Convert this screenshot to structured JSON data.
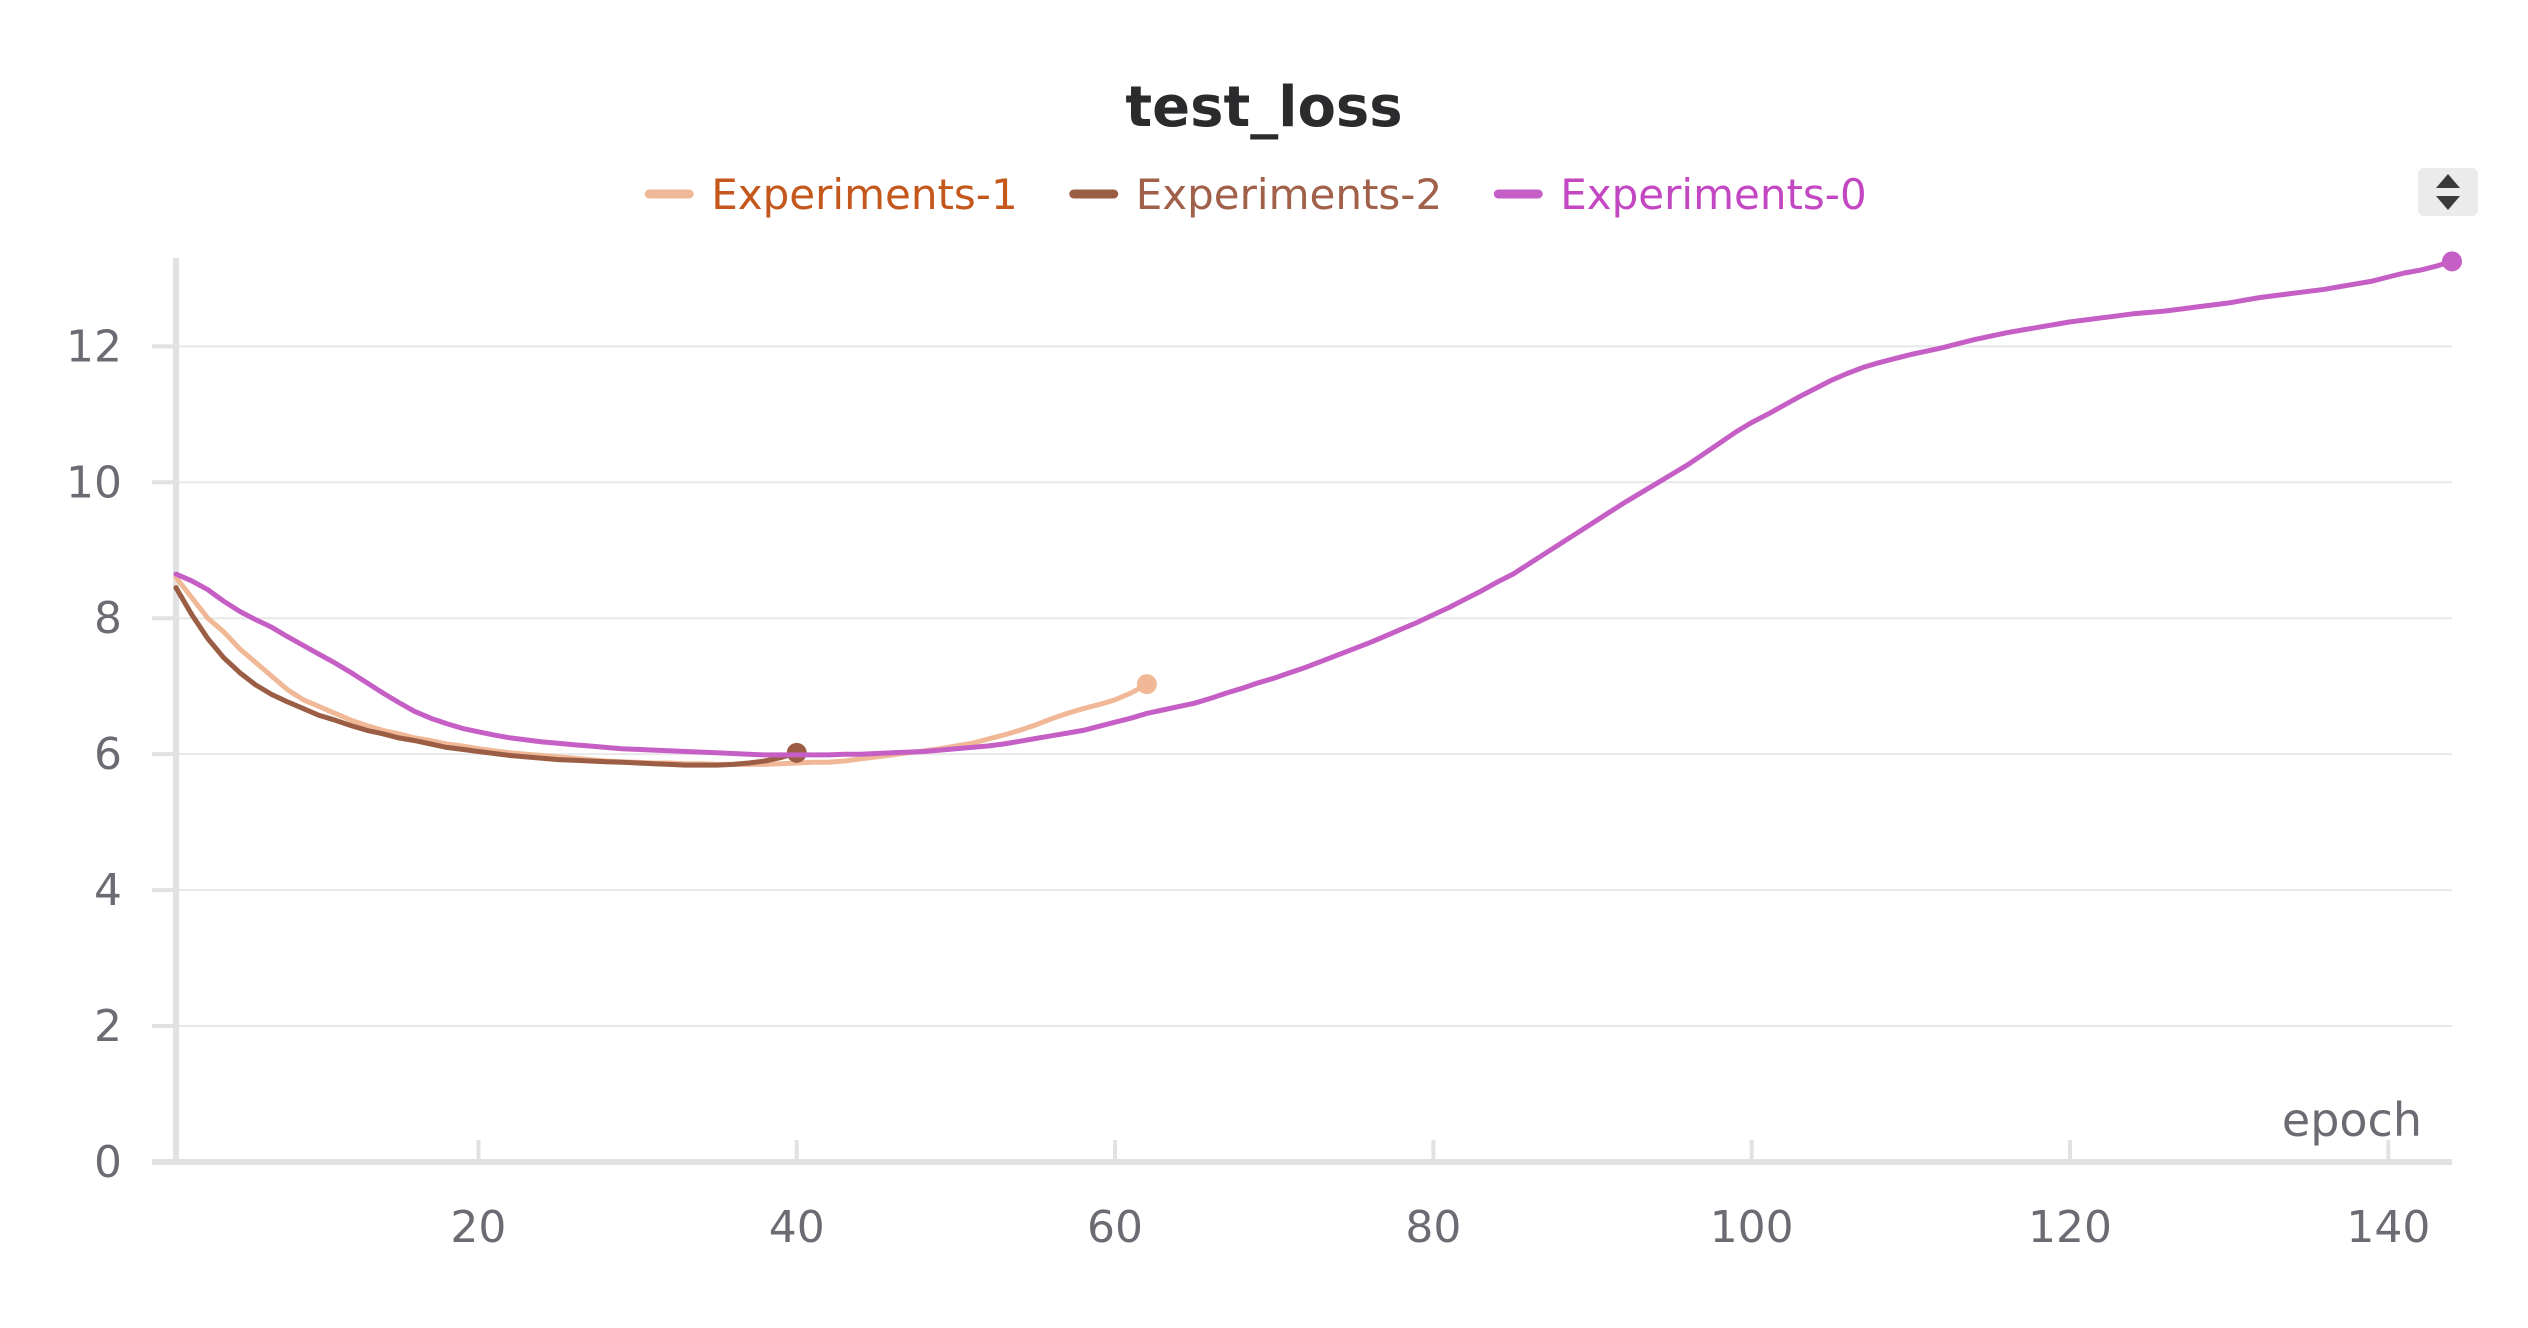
{
  "chart_data": {
    "type": "line",
    "title": "test_loss",
    "xlabel": "epoch",
    "ylabel": "",
    "xlim": [
      1,
      144
    ],
    "ylim": [
      0,
      13.3
    ],
    "x_ticks": [
      20,
      40,
      60,
      80,
      100,
      120,
      140
    ],
    "y_ticks": [
      0,
      2,
      4,
      6,
      8,
      10,
      12
    ],
    "grid": "horizontal",
    "legend_position": "top-center",
    "series": [
      {
        "name": "Experiments-1",
        "color": "#f0b896",
        "label_color": "#c4571b",
        "x": [
          1,
          2,
          3,
          4,
          5,
          6,
          7,
          8,
          9,
          10,
          11,
          12,
          13,
          14,
          15,
          16,
          17,
          18,
          19,
          20,
          21,
          22,
          23,
          24,
          25,
          26,
          27,
          28,
          29,
          30,
          31,
          32,
          33,
          34,
          35,
          36,
          37,
          38,
          39,
          40,
          41,
          42,
          43,
          44,
          45,
          46,
          47,
          48,
          49,
          50,
          51,
          52,
          53,
          54,
          55,
          56,
          57,
          58,
          59,
          60,
          61,
          62
        ],
        "y": [
          8.6,
          8.3,
          8.0,
          7.8,
          7.55,
          7.35,
          7.15,
          6.95,
          6.8,
          6.7,
          6.6,
          6.5,
          6.42,
          6.35,
          6.3,
          6.24,
          6.2,
          6.15,
          6.12,
          6.08,
          6.05,
          6.02,
          6.0,
          5.98,
          5.96,
          5.94,
          5.92,
          5.9,
          5.89,
          5.88,
          5.87,
          5.87,
          5.86,
          5.86,
          5.85,
          5.85,
          5.85,
          5.85,
          5.86,
          5.87,
          5.88,
          5.88,
          5.9,
          5.93,
          5.96,
          5.99,
          6.02,
          6.05,
          6.08,
          6.12,
          6.16,
          6.22,
          6.28,
          6.35,
          6.43,
          6.52,
          6.6,
          6.67,
          6.73,
          6.8,
          6.9,
          7.03
        ]
      },
      {
        "name": "Experiments-2",
        "color": "#9b5e45",
        "label_color": "#a0604a",
        "x": [
          1,
          2,
          3,
          4,
          5,
          6,
          7,
          8,
          9,
          10,
          11,
          12,
          13,
          14,
          15,
          16,
          17,
          18,
          19,
          20,
          21,
          22,
          23,
          24,
          25,
          26,
          27,
          28,
          29,
          30,
          31,
          32,
          33,
          34,
          35,
          36,
          37,
          38,
          39,
          40
        ],
        "y": [
          8.45,
          8.05,
          7.7,
          7.42,
          7.2,
          7.02,
          6.88,
          6.77,
          6.67,
          6.57,
          6.5,
          6.42,
          6.35,
          6.3,
          6.24,
          6.2,
          6.15,
          6.1,
          6.07,
          6.04,
          6.01,
          5.98,
          5.96,
          5.94,
          5.92,
          5.91,
          5.9,
          5.89,
          5.88,
          5.87,
          5.86,
          5.85,
          5.84,
          5.84,
          5.84,
          5.85,
          5.87,
          5.9,
          5.95,
          6.02
        ]
      },
      {
        "name": "Experiments-0",
        "color": "#c65fc5",
        "label_color": "#c346c2",
        "x": [
          1,
          2,
          3,
          4,
          5,
          6,
          7,
          8,
          9,
          10,
          11,
          12,
          13,
          14,
          15,
          16,
          17,
          18,
          19,
          20,
          21,
          22,
          23,
          24,
          25,
          26,
          27,
          28,
          29,
          30,
          31,
          32,
          33,
          34,
          35,
          36,
          37,
          38,
          39,
          40,
          41,
          42,
          43,
          44,
          45,
          46,
          47,
          48,
          49,
          50,
          51,
          52,
          53,
          54,
          55,
          56,
          57,
          58,
          59,
          60,
          61,
          62,
          63,
          64,
          65,
          66,
          67,
          68,
          69,
          70,
          71,
          72,
          73,
          74,
          75,
          76,
          77,
          78,
          79,
          80,
          81,
          82,
          83,
          84,
          85,
          86,
          87,
          88,
          89,
          90,
          91,
          92,
          93,
          94,
          95,
          96,
          97,
          98,
          99,
          100,
          101,
          102,
          103,
          104,
          105,
          106,
          107,
          108,
          109,
          110,
          111,
          112,
          113,
          114,
          115,
          116,
          117,
          118,
          119,
          120,
          121,
          122,
          123,
          124,
          125,
          126,
          127,
          128,
          129,
          130,
          131,
          132,
          133,
          134,
          135,
          136,
          137,
          138,
          139,
          140,
          141,
          142,
          143,
          144
        ],
        "y": [
          8.65,
          8.55,
          8.42,
          8.25,
          8.1,
          7.98,
          7.87,
          7.73,
          7.6,
          7.47,
          7.34,
          7.2,
          7.05,
          6.9,
          6.76,
          6.63,
          6.53,
          6.45,
          6.38,
          6.33,
          6.28,
          6.24,
          6.21,
          6.18,
          6.16,
          6.14,
          6.12,
          6.1,
          6.08,
          6.07,
          6.06,
          6.05,
          6.04,
          6.03,
          6.02,
          6.01,
          6.0,
          5.99,
          5.99,
          5.99,
          5.99,
          5.99,
          6.0,
          6.0,
          6.01,
          6.02,
          6.03,
          6.04,
          6.06,
          6.08,
          6.1,
          6.12,
          6.15,
          6.19,
          6.23,
          6.27,
          6.31,
          6.35,
          6.41,
          6.47,
          6.53,
          6.6,
          6.65,
          6.7,
          6.75,
          6.82,
          6.9,
          6.97,
          7.05,
          7.12,
          7.2,
          7.28,
          7.37,
          7.46,
          7.55,
          7.64,
          7.74,
          7.84,
          7.94,
          8.05,
          8.16,
          8.28,
          8.4,
          8.53,
          8.65,
          8.8,
          8.95,
          9.1,
          9.25,
          9.4,
          9.55,
          9.7,
          9.84,
          9.98,
          10.12,
          10.26,
          10.42,
          10.58,
          10.74,
          10.88,
          11.0,
          11.13,
          11.26,
          11.38,
          11.5,
          11.6,
          11.69,
          11.76,
          11.82,
          11.88,
          11.93,
          11.98,
          12.04,
          12.1,
          12.15,
          12.2,
          12.24,
          12.28,
          12.32,
          12.36,
          12.39,
          12.42,
          12.45,
          12.48,
          12.5,
          12.52,
          12.55,
          12.58,
          12.61,
          12.64,
          12.68,
          12.72,
          12.75,
          12.78,
          12.81,
          12.84,
          12.88,
          12.92,
          12.96,
          13.02,
          13.08,
          13.12,
          13.18,
          13.25
        ]
      }
    ]
  }
}
